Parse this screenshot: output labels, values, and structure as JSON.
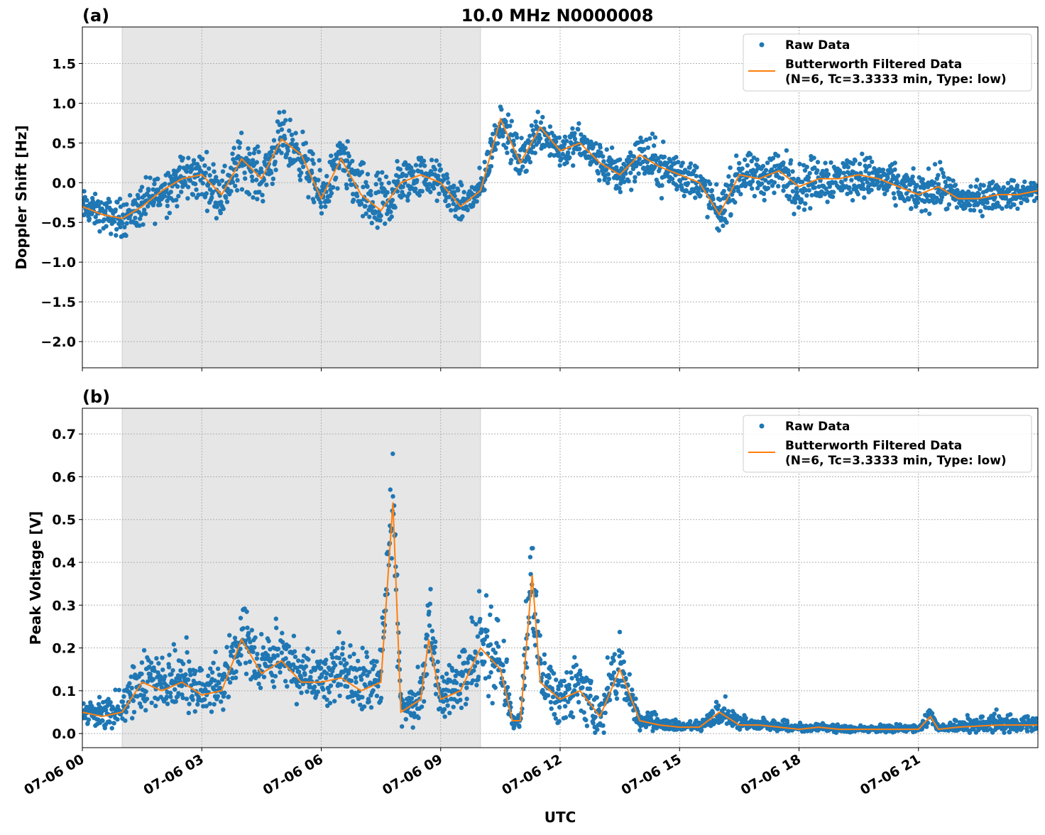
{
  "title": "10.0 MHz N0000008",
  "xlabel": "UTC",
  "colors": {
    "raw": "#1f77b4",
    "filtered": "#ff7f0e",
    "shade": "#e6e6e6"
  },
  "chart_data": [
    {
      "type": "scatter+line",
      "panel_label": "(a)",
      "ylabel": "Doppler Shift [Hz]",
      "ylim": [
        -2.33,
        1.96
      ],
      "yticks": [
        1.5,
        1.0,
        0.5,
        0.0,
        -0.5,
        -1.0,
        -1.5,
        -2.0
      ],
      "ytick_labels": [
        "1.5",
        "1.0",
        "0.5",
        "0.0",
        "−0.5",
        "−1.0",
        "−1.5",
        "−2.0"
      ],
      "grid": true,
      "legend": {
        "placement": "top-right",
        "entries": [
          "Raw Data",
          "Butterworth Filtered Data",
          "(N=6, Tc=3.3333 min, Type: low)"
        ]
      },
      "shaded_interval_utc": [
        "07-06 01:00",
        "07-06 10:00"
      ],
      "filtered_series": {
        "x_hours_utc": [
          0,
          0.5,
          1,
          1.5,
          2,
          2.5,
          3,
          3.5,
          4,
          4.5,
          5,
          5.5,
          6,
          6.5,
          7,
          7.5,
          8,
          8.5,
          9,
          9.5,
          10,
          10.5,
          11,
          11.5,
          12,
          12.5,
          13,
          13.5,
          14,
          14.5,
          15,
          15.5,
          16,
          16.5,
          17,
          17.5,
          18,
          18.5,
          19,
          19.5,
          20,
          20.5,
          21,
          21.5,
          22,
          22.5,
          23,
          23.5,
          24
        ],
        "y": [
          -0.3,
          -0.4,
          -0.45,
          -0.3,
          -0.1,
          0.05,
          0.1,
          -0.15,
          0.3,
          0.05,
          0.55,
          0.35,
          -0.2,
          0.3,
          -0.15,
          -0.35,
          0.0,
          0.1,
          0.0,
          -0.3,
          -0.1,
          0.8,
          0.25,
          0.7,
          0.4,
          0.5,
          0.25,
          0.1,
          0.35,
          0.2,
          0.1,
          0.0,
          -0.4,
          0.1,
          0.05,
          0.15,
          -0.05,
          0.05,
          0.05,
          0.1,
          0.05,
          -0.05,
          -0.15,
          -0.05,
          -0.2,
          -0.2,
          -0.15,
          -0.15,
          -0.1
        ],
        "raw_spread": [
          0.3,
          0.3,
          0.35,
          0.4,
          0.45,
          0.45,
          0.45,
          0.45,
          0.5,
          0.45,
          0.5,
          0.45,
          0.5,
          0.45,
          0.55,
          0.7,
          0.45,
          0.4,
          0.35,
          0.35,
          0.35,
          0.35,
          0.4,
          0.4,
          0.35,
          0.35,
          0.35,
          0.4,
          0.45,
          0.45,
          0.4,
          0.35,
          0.4,
          0.4,
          0.4,
          0.45,
          0.45,
          0.45,
          0.4,
          0.4,
          0.35,
          0.35,
          0.35,
          0.4,
          0.3,
          0.3,
          0.25,
          0.25,
          0.2
        ]
      }
    },
    {
      "type": "scatter+line",
      "panel_label": "(b)",
      "ylabel": "Peak Voltage [V]",
      "ylim": [
        -0.033,
        0.76
      ],
      "yticks": [
        0.0,
        0.1,
        0.2,
        0.3,
        0.4,
        0.5,
        0.6,
        0.7
      ],
      "ytick_labels": [
        "0.0",
        "0.1",
        "0.2",
        "0.3",
        "0.4",
        "0.5",
        "0.6",
        "0.7"
      ],
      "grid": true,
      "legend": {
        "placement": "top-right",
        "entries": [
          "Raw Data",
          "Butterworth Filtered Data",
          "(N=6, Tc=3.3333 min, Type: low)"
        ]
      },
      "shaded_interval_utc": [
        "07-06 01:00",
        "07-06 10:00"
      ],
      "filtered_series": {
        "x_hours_utc": [
          0,
          0.5,
          1,
          1.5,
          2,
          2.5,
          3,
          3.5,
          4,
          4.5,
          5,
          5.5,
          6,
          6.5,
          7,
          7.5,
          7.8,
          8,
          8.5,
          8.7,
          9,
          9.5,
          10,
          10.5,
          10.8,
          11,
          11.3,
          11.5,
          12,
          12.5,
          13,
          13.5,
          14,
          14.5,
          15,
          15.5,
          16,
          16.5,
          17,
          17.5,
          18,
          18.5,
          19,
          19.5,
          20,
          21,
          21.3,
          21.5,
          22,
          23,
          24
        ],
        "y": [
          0.05,
          0.04,
          0.05,
          0.12,
          0.1,
          0.12,
          0.09,
          0.1,
          0.22,
          0.14,
          0.17,
          0.12,
          0.12,
          0.13,
          0.1,
          0.12,
          0.54,
          0.05,
          0.08,
          0.22,
          0.08,
          0.1,
          0.2,
          0.15,
          0.03,
          0.03,
          0.37,
          0.12,
          0.08,
          0.1,
          0.04,
          0.15,
          0.03,
          0.02,
          0.015,
          0.015,
          0.05,
          0.02,
          0.02,
          0.015,
          0.01,
          0.015,
          0.01,
          0.01,
          0.01,
          0.01,
          0.04,
          0.01,
          0.015,
          0.02,
          0.02
        ],
        "raw_spread": [
          0.04,
          0.04,
          0.05,
          0.1,
          0.1,
          0.1,
          0.07,
          0.08,
          0.12,
          0.09,
          0.1,
          0.08,
          0.08,
          0.08,
          0.08,
          0.1,
          0.18,
          0.06,
          0.07,
          0.15,
          0.07,
          0.08,
          0.15,
          0.15,
          0.03,
          0.03,
          0.2,
          0.1,
          0.1,
          0.1,
          0.06,
          0.1,
          0.03,
          0.02,
          0.015,
          0.015,
          0.04,
          0.02,
          0.02,
          0.015,
          0.015,
          0.015,
          0.01,
          0.01,
          0.01,
          0.01,
          0.03,
          0.01,
          0.02,
          0.03,
          0.025
        ]
      }
    }
  ],
  "xaxis": {
    "xlim_hours": [
      0,
      24
    ],
    "ticks_hours": [
      0,
      3,
      6,
      9,
      12,
      15,
      18,
      21
    ],
    "tick_labels": [
      "07-06 00",
      "07-06 03",
      "07-06 06",
      "07-06 09",
      "07-06 12",
      "07-06 15",
      "07-06 18",
      "07-06 21"
    ]
  }
}
